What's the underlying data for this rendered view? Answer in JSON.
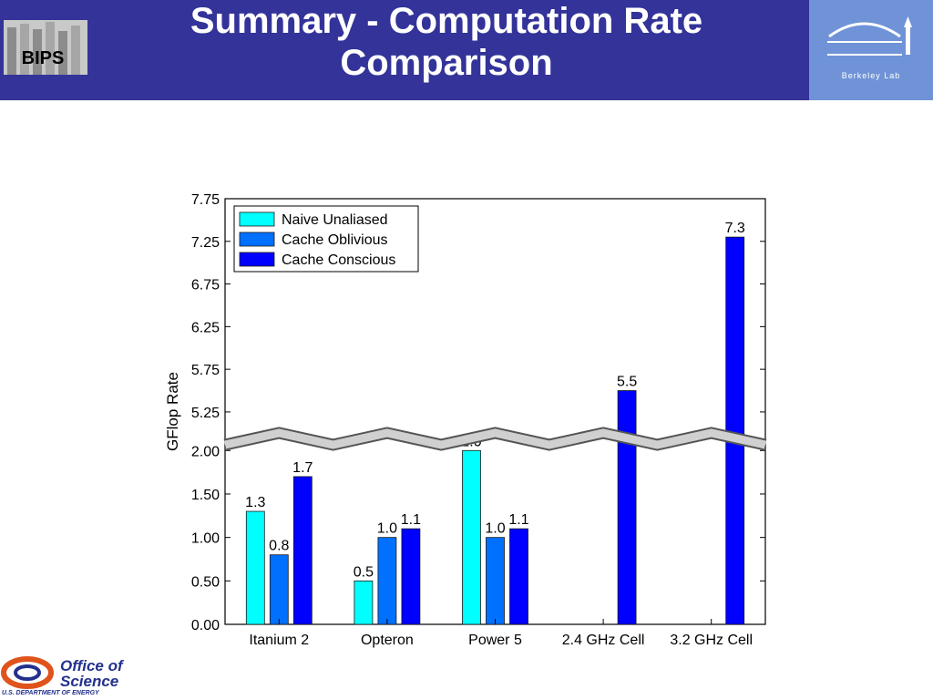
{
  "header": {
    "title_line1": "Summary - Computation Rate",
    "title_line2": "Comparison",
    "left_logo": "BIPS",
    "right_logo": "Berkeley Lab"
  },
  "footer": {
    "line1": "Office of",
    "line2": "Science",
    "line3": "U.S. DEPARTMENT OF ENERGY"
  },
  "colors": {
    "header_bg": "#333399",
    "lab_bg": "#6f93d6",
    "series": [
      "#00ffff",
      "#0070ff",
      "#0000ff"
    ]
  },
  "chart_data": {
    "type": "bar",
    "ylabel": "GFlop Rate",
    "categories": [
      "Itanium 2",
      "Opteron",
      "Power 5",
      "2.4 GHz Cell",
      "3.2 GHz Cell"
    ],
    "series": [
      {
        "name": "Naive Unaliased",
        "values": [
          1.3,
          0.5,
          2.0,
          null,
          null
        ],
        "labels": [
          "1.3",
          "0.5",
          "2.0",
          "",
          ""
        ]
      },
      {
        "name": "Cache Oblivious",
        "values": [
          0.8,
          1.0,
          1.0,
          null,
          null
        ],
        "labels": [
          "0.8",
          "1.0",
          "1.0",
          "",
          ""
        ]
      },
      {
        "name": "Cache Conscious",
        "values": [
          1.7,
          1.1,
          1.1,
          5.5,
          7.3
        ],
        "labels": [
          "1.7",
          "1.1",
          "1.1",
          "5.5",
          "7.3"
        ]
      }
    ],
    "yticks_lower": [
      "0.00",
      "0.50",
      "1.00",
      "1.50",
      "2.00"
    ],
    "yticks_upper": [
      "5.25",
      "5.75",
      "6.25",
      "6.75",
      "7.25",
      "7.75"
    ],
    "ylim_lower": [
      0,
      2.15
    ],
    "ylim_upper": [
      4.95,
      7.75
    ],
    "broken_axis": true,
    "legend": "top-left",
    "grid": false
  }
}
